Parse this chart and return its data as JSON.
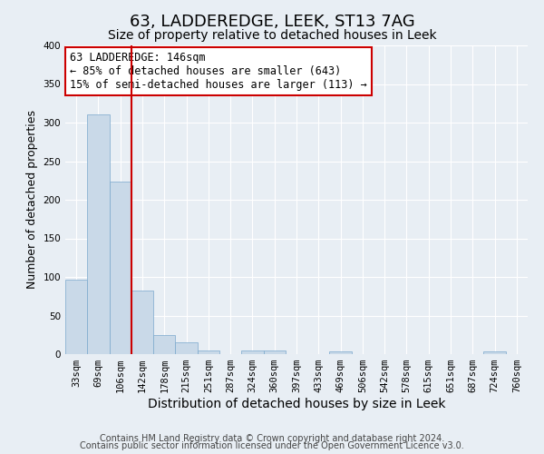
{
  "title": "63, LADDEREDGE, LEEK, ST13 7AG",
  "subtitle": "Size of property relative to detached houses in Leek",
  "xlabel": "Distribution of detached houses by size in Leek",
  "ylabel": "Number of detached properties",
  "bar_labels": [
    "33sqm",
    "69sqm",
    "106sqm",
    "142sqm",
    "178sqm",
    "215sqm",
    "251sqm",
    "287sqm",
    "324sqm",
    "360sqm",
    "397sqm",
    "433sqm",
    "469sqm",
    "506sqm",
    "542sqm",
    "578sqm",
    "615sqm",
    "651sqm",
    "687sqm",
    "724sqm",
    "760sqm"
  ],
  "bar_values": [
    97,
    311,
    224,
    82,
    25,
    15,
    5,
    0,
    5,
    5,
    0,
    0,
    3,
    0,
    0,
    0,
    0,
    0,
    0,
    3,
    0
  ],
  "bar_color": "#c9d9e8",
  "bar_edge_color": "#7aa8cc",
  "bg_color": "#e8eef4",
  "plot_bg_color": "#e8eef4",
  "grid_color": "#ffffff",
  "annotation_text": "63 LADDEREDGE: 146sqm\n← 85% of detached houses are smaller (643)\n15% of semi-detached houses are larger (113) →",
  "vline_x_index": 3,
  "vline_color": "#cc0000",
  "annotation_box_color": "#ffffff",
  "annotation_box_edge_color": "#cc0000",
  "ylim": [
    0,
    400
  ],
  "yticks": [
    0,
    50,
    100,
    150,
    200,
    250,
    300,
    350,
    400
  ],
  "footer_line1": "Contains HM Land Registry data © Crown copyright and database right 2024.",
  "footer_line2": "Contains public sector information licensed under the Open Government Licence v3.0.",
  "title_fontsize": 13,
  "subtitle_fontsize": 10,
  "xlabel_fontsize": 10,
  "ylabel_fontsize": 9,
  "tick_fontsize": 7.5,
  "footer_fontsize": 7,
  "annotation_fontsize": 8.5
}
